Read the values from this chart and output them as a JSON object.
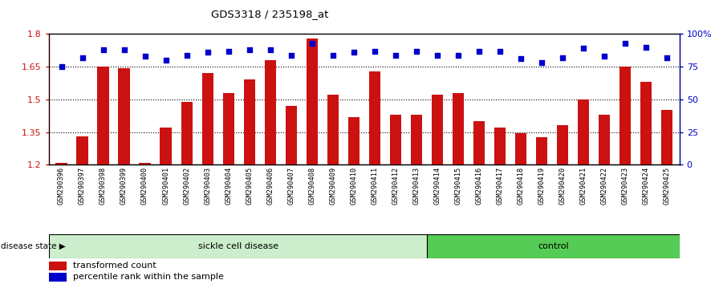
{
  "title": "GDS3318 / 235198_at",
  "samples": [
    "GSM290396",
    "GSM290397",
    "GSM290398",
    "GSM290399",
    "GSM290400",
    "GSM290401",
    "GSM290402",
    "GSM290403",
    "GSM290404",
    "GSM290405",
    "GSM290406",
    "GSM290407",
    "GSM290408",
    "GSM290409",
    "GSM290410",
    "GSM290411",
    "GSM290412",
    "GSM290413",
    "GSM290414",
    "GSM290415",
    "GSM290416",
    "GSM290417",
    "GSM290418",
    "GSM290419",
    "GSM290420",
    "GSM290421",
    "GSM290422",
    "GSM290423",
    "GSM290424",
    "GSM290425"
  ],
  "bar_values": [
    1.21,
    1.33,
    1.65,
    1.645,
    1.21,
    1.37,
    1.49,
    1.62,
    1.53,
    1.59,
    1.68,
    1.47,
    1.78,
    1.52,
    1.42,
    1.63,
    1.43,
    1.43,
    1.52,
    1.53,
    1.4,
    1.37,
    1.345,
    1.325,
    1.38,
    1.5,
    1.43,
    1.65,
    1.58,
    1.45
  ],
  "percentile_values": [
    75,
    82,
    88,
    88,
    83,
    80,
    84,
    86,
    87,
    88,
    88,
    84,
    93,
    84,
    86,
    87,
    84,
    87,
    84,
    84,
    87,
    87,
    81,
    78,
    82,
    89,
    83,
    93,
    90,
    82
  ],
  "sickle_count": 18,
  "ylim_left": [
    1.2,
    1.8
  ],
  "ylim_right": [
    0,
    100
  ],
  "yticks_left": [
    1.2,
    1.35,
    1.5,
    1.65,
    1.8
  ],
  "yticks_right": [
    0,
    25,
    50,
    75,
    100
  ],
  "bar_color": "#cc1111",
  "dot_color": "#0000cc",
  "sickle_label": "sickle cell disease",
  "control_label": "control",
  "disease_state_label": "disease state",
  "legend_bar_label": "transformed count",
  "legend_dot_label": "percentile rank within the sample",
  "bg_plot": "#ffffff",
  "sickle_bg": "#cceecc",
  "control_bg": "#55cc55",
  "axis_color_left": "#cc1111",
  "axis_color_right": "#0000cc",
  "dotgrid_color": "#888888"
}
